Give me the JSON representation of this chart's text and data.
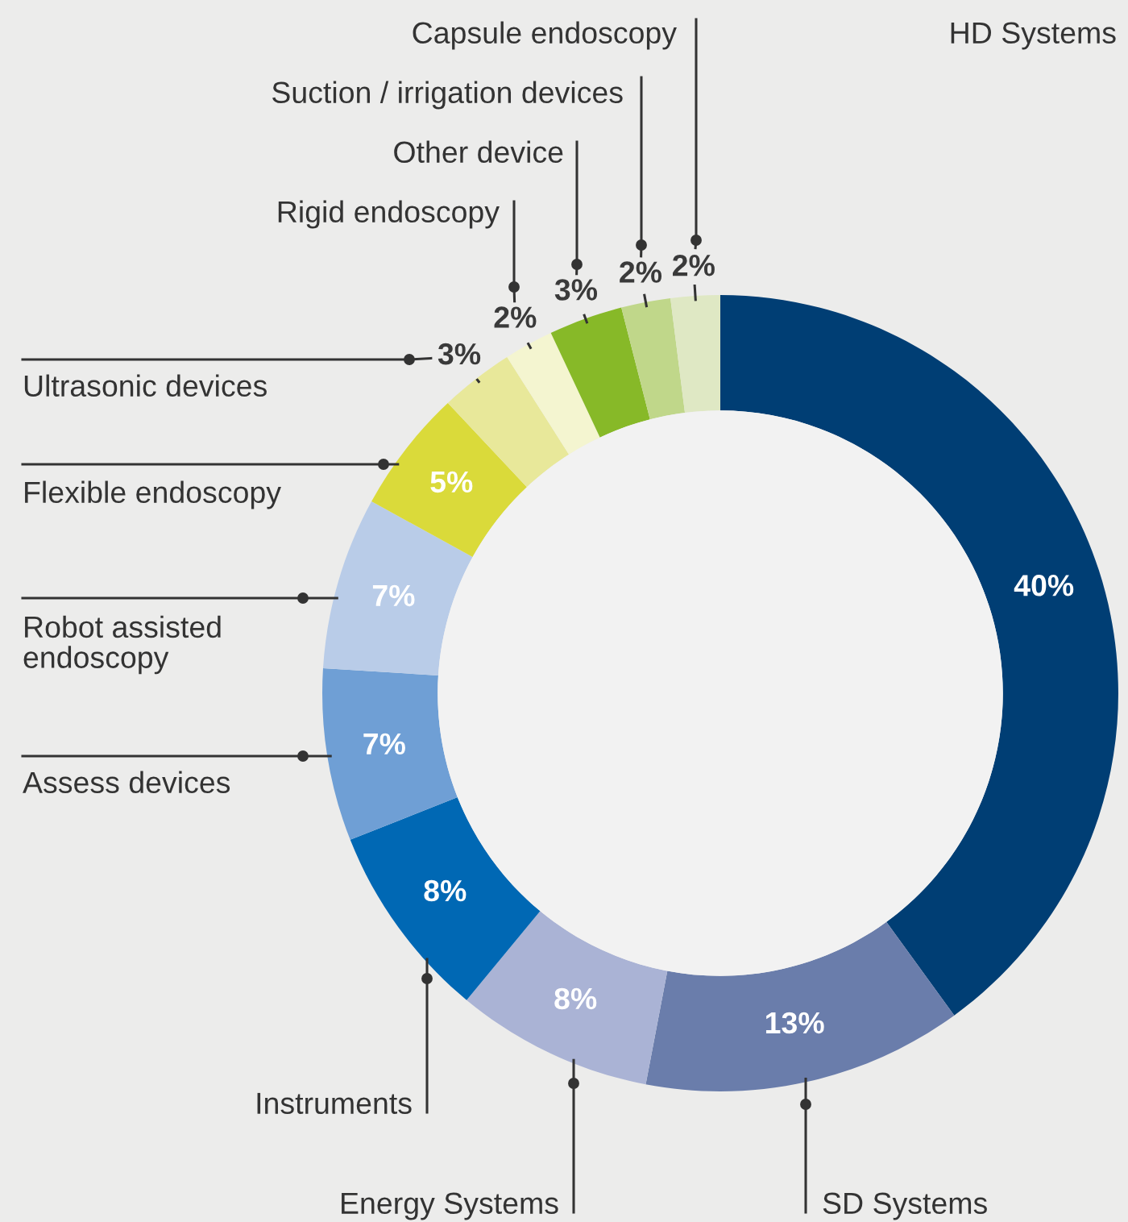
{
  "chart_data": {
    "type": "donut",
    "categories": [
      "HD Systems",
      "SD Systems",
      "Energy Systems",
      "Instruments",
      "Assess devices",
      "Robot assisted\nendoscopy",
      "Flexible endoscopy",
      "Ultrasonic devices",
      "Rigid endoscopy",
      "Other device",
      "Suction / irrigation devices",
      "Capsule endoscopy"
    ],
    "values": [
      40,
      13,
      8,
      8,
      7,
      7,
      5,
      3,
      2,
      3,
      2,
      2
    ],
    "value_labels": [
      "40%",
      "13%",
      "8%",
      "8%",
      "7%",
      "7%",
      "5%",
      "3%",
      "2%",
      "3%",
      "2%",
      "2%"
    ],
    "colors": [
      "#003e74",
      "#6a7dab",
      "#aab3d5",
      "#0068b4",
      "#6f9fd5",
      "#b9cce8",
      "#dada3a",
      "#e8e89a",
      "#f4f5d0",
      "#87b928",
      "#c0d78a",
      "#dfe8c4"
    ],
    "legend": false
  }
}
